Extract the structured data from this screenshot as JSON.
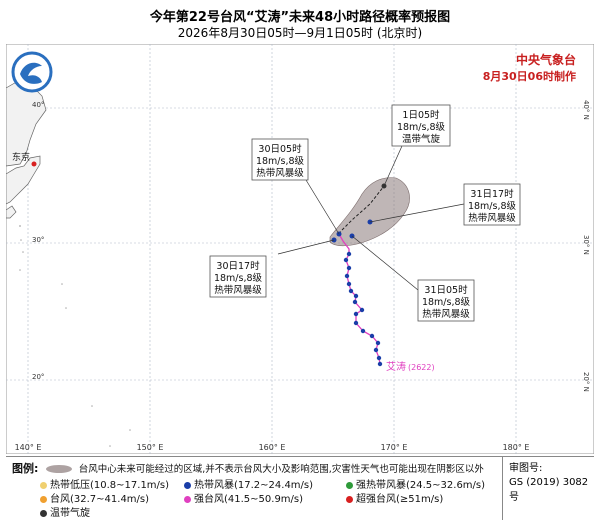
{
  "title": "今年第22号台风“艾涛”未来48小时路径概率预报图",
  "subtitle": "2026年8月30日05时—9月1日05时 (北京时)",
  "agency": {
    "name": "中央气象台",
    "issued": "8月30日06时制作"
  },
  "city": "东京",
  "storm_label": "艾涛",
  "storm_code": "(2622)",
  "lon_labels": [
    "140° E",
    "150° E",
    "160° E",
    "170° E",
    "180° E"
  ],
  "lat_labels_right": [
    "40° N",
    "30° N",
    "20° N"
  ],
  "lat_labels_left": [
    "40°",
    "30°",
    "20°"
  ],
  "forecast_points": [
    {
      "time": "1日05时",
      "wind": "18m/s,8级",
      "grade": "温带气旋"
    },
    {
      "time": "31日17时",
      "wind": "18m/s,8级",
      "grade": "热带风暴级"
    },
    {
      "time": "31日05时",
      "wind": "18m/s,8级",
      "grade": "热带风暴级"
    },
    {
      "time": "30日17时",
      "wind": "18m/s,8级",
      "grade": "热带风暴级"
    },
    {
      "time": "30日05时",
      "wind": "18m/s,8级",
      "grade": "热带风暴级"
    }
  ],
  "legend": {
    "label": "图例:",
    "cone_text": "台风中心未来可能经过的区域,并不表示台风大小及影响范围,灾害性天气也可能出现在阴影区以外",
    "items": [
      {
        "text": "热带低压(10.8~17.1m/s)",
        "color": "#f0d070"
      },
      {
        "text": "热带风暴(17.2~24.4m/s)",
        "color": "#1a3ea8"
      },
      {
        "text": "强热带风暴(24.5~32.6m/s)",
        "color": "#2e9a3a"
      },
      {
        "text": "台风(32.7~41.4m/s)",
        "color": "#f0a030"
      },
      {
        "text": "强台风(41.5~50.9m/s)",
        "color": "#e040c0"
      },
      {
        "text": "超强台风(≥51m/s)",
        "color": "#d82020"
      },
      {
        "text": "温带气旋",
        "color": "#333333"
      }
    ]
  },
  "review": {
    "label": "审图号:",
    "code": "GS (2019) 3082号"
  },
  "colors": {
    "ocean": "#ffffff",
    "land": "#f2f2f2",
    "grid": "#b0b8c8",
    "track_past": "#e040c0",
    "cone": "#8a7a7a"
  }
}
